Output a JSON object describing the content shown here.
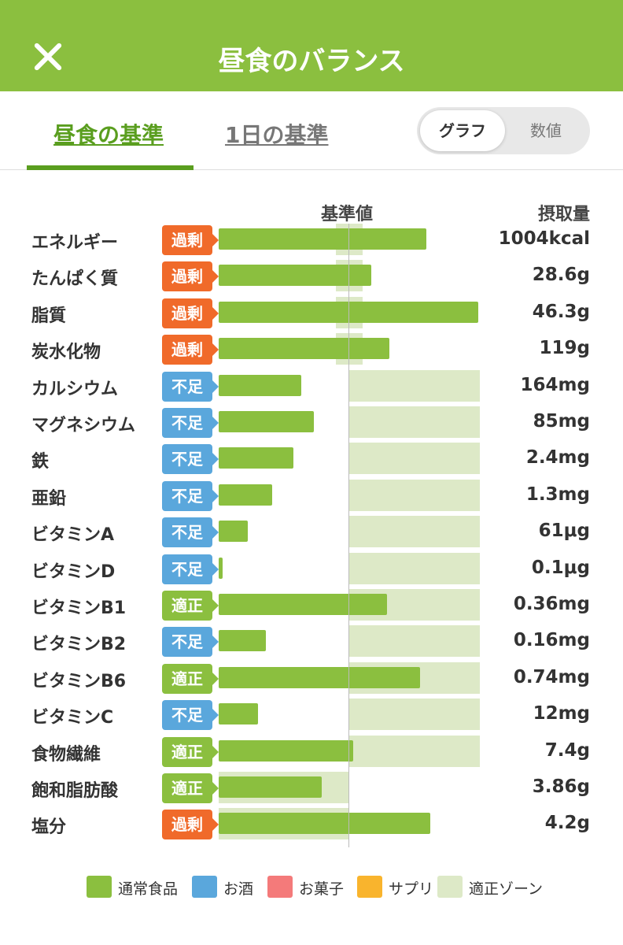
{
  "header": {
    "title": "昼食のバランス"
  },
  "tabs": [
    {
      "label": "昼食の基準"
    },
    {
      "label": "1日の基準"
    }
  ],
  "view_toggle": {
    "options": [
      "グラフ",
      "数値"
    ],
    "selected": "グラフ"
  },
  "columns": {
    "reference": "基準値",
    "intake": "摂取量"
  },
  "status_colors": {
    "過剰": "#f06a2a",
    "不足": "#5aa7dc",
    "適正": "#8bbf3f"
  },
  "chart_data": {
    "type": "bar",
    "title": "",
    "xlabel": "",
    "ylabel": "",
    "scale": "percent of standard (reference line = 100%)",
    "items": [
      {
        "name": "エネルギー",
        "status": "過剰",
        "value": "1004kcal",
        "pct": 159,
        "zone": [
          90,
          110
        ]
      },
      {
        "name": "たんぱく質",
        "status": "過剰",
        "value": "28.6g",
        "pct": 117,
        "zone": [
          90,
          110
        ]
      },
      {
        "name": "脂質",
        "status": "過剰",
        "value": "46.3g",
        "pct": 199,
        "zone": [
          90,
          110
        ]
      },
      {
        "name": "炭水化物",
        "status": "過剰",
        "value": "119g",
        "pct": 131,
        "zone": [
          90,
          110
        ]
      },
      {
        "name": "カルシウム",
        "status": "不足",
        "value": "164mg",
        "pct": 63,
        "zone": [
          100,
          200
        ]
      },
      {
        "name": "マグネシウム",
        "status": "不足",
        "value": "85mg",
        "pct": 73,
        "zone": [
          100,
          200
        ]
      },
      {
        "name": "鉄",
        "status": "不足",
        "value": "2.4mg",
        "pct": 57,
        "zone": [
          100,
          200
        ]
      },
      {
        "name": "亜鉛",
        "status": "不足",
        "value": "1.3mg",
        "pct": 41,
        "zone": [
          100,
          200
        ]
      },
      {
        "name": "ビタミンA",
        "status": "不足",
        "value": "61μg",
        "pct": 22,
        "zone": [
          100,
          200
        ]
      },
      {
        "name": "ビタミンD",
        "status": "不足",
        "value": "0.1μg",
        "pct": 3,
        "zone": [
          100,
          200
        ]
      },
      {
        "name": "ビタミンB1",
        "status": "適正",
        "value": "0.36mg",
        "pct": 129,
        "zone": [
          100,
          200
        ]
      },
      {
        "name": "ビタミンB2",
        "status": "不足",
        "value": "0.16mg",
        "pct": 36,
        "zone": [
          100,
          200
        ]
      },
      {
        "name": "ビタミンB6",
        "status": "適正",
        "value": "0.74mg",
        "pct": 154,
        "zone": [
          100,
          200
        ]
      },
      {
        "name": "ビタミンC",
        "status": "不足",
        "value": "12mg",
        "pct": 30,
        "zone": [
          100,
          200
        ]
      },
      {
        "name": "食物繊維",
        "status": "適正",
        "value": "7.4g",
        "pct": 103,
        "zone": [
          100,
          200
        ]
      },
      {
        "name": "飽和脂肪酸",
        "status": "適正",
        "value": "3.86g",
        "pct": 79,
        "zone": [
          0,
          100
        ]
      },
      {
        "name": "塩分",
        "status": "過剰",
        "value": "4.2g",
        "pct": 162,
        "zone": [
          0,
          100
        ]
      }
    ]
  },
  "legend": [
    {
      "label": "通常食品",
      "color": "#8bbf3f"
    },
    {
      "label": "お酒",
      "color": "#5aa7dc"
    },
    {
      "label": "お菓子",
      "color": "#f47a7a"
    },
    {
      "label": "サプリ",
      "color": "#f9b42d"
    },
    {
      "label": "適正ゾーン",
      "color": "#dde9c7"
    }
  ]
}
